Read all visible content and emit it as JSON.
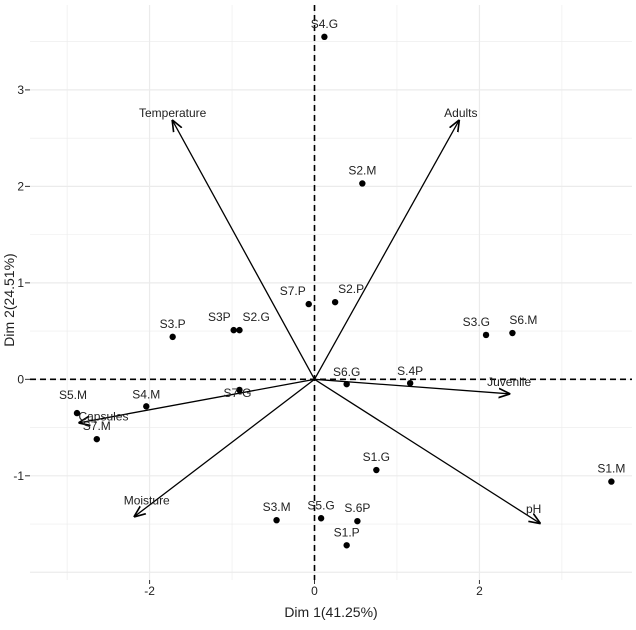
{
  "chart_data": {
    "type": "scatter",
    "subtype": "pca-biplot",
    "title": "",
    "xlabel": "Dim 1(41.25%)",
    "ylabel": "Dim 2(24.51%)",
    "xlim": [
      -3.45,
      3.85
    ],
    "ylim": [
      -2.08,
      3.88
    ],
    "xticks": [
      -2,
      0,
      2
    ],
    "yticks": [
      -1,
      0,
      1,
      2,
      3
    ],
    "grid": true,
    "points": [
      {
        "label": "S4.G",
        "x": 0.12,
        "y": 3.55
      },
      {
        "label": "S2.M",
        "x": 0.58,
        "y": 2.03
      },
      {
        "label": "S7.P",
        "x": -0.07,
        "y": 0.78
      },
      {
        "label": "S2.P",
        "x": 0.25,
        "y": 0.8
      },
      {
        "label": "S3P",
        "x": -0.98,
        "y": 0.51
      },
      {
        "label": "S2.G",
        "x": -0.91,
        "y": 0.51
      },
      {
        "label": "S3.P",
        "x": -1.72,
        "y": 0.44
      },
      {
        "label": "S3.G",
        "x": 2.08,
        "y": 0.46
      },
      {
        "label": "S6.M",
        "x": 2.4,
        "y": 0.48
      },
      {
        "label": "S6.G",
        "x": 0.39,
        "y": -0.05
      },
      {
        "label": "S.4P",
        "x": 1.16,
        "y": -0.04
      },
      {
        "label": "S7-G",
        "x": -0.91,
        "y": -0.11
      },
      {
        "label": "S4.M",
        "x": -2.04,
        "y": -0.28
      },
      {
        "label": "S5.M",
        "x": -2.88,
        "y": -0.35
      },
      {
        "label": "S7.M",
        "x": -2.64,
        "y": -0.62
      },
      {
        "label": "S1.G",
        "x": 0.75,
        "y": -0.94
      },
      {
        "label": "S1.M",
        "x": 3.6,
        "y": -1.06
      },
      {
        "label": "S3.M",
        "x": -0.46,
        "y": -1.46
      },
      {
        "label": "S5.G",
        "x": 0.08,
        "y": -1.44
      },
      {
        "label": "S.6P",
        "x": 0.52,
        "y": -1.47
      },
      {
        "label": "S1.P",
        "x": 0.39,
        "y": -1.72
      }
    ],
    "vectors": [
      {
        "label": "Temperature",
        "x": -1.72,
        "y": 2.68
      },
      {
        "label": "Adults",
        "x": 1.75,
        "y": 2.68
      },
      {
        "label": "Juvenile",
        "x": 2.36,
        "y": -0.15
      },
      {
        "label": "pH",
        "x": 2.73,
        "y": -1.49
      },
      {
        "label": "Moisture",
        "x": -2.18,
        "y": -1.42
      },
      {
        "label": "Capsules",
        "x": -2.85,
        "y": -0.45
      }
    ],
    "colors": {
      "points": "#000000",
      "vectors": "#000000",
      "grid": "#ebebeb",
      "background": "#ffffff"
    }
  }
}
